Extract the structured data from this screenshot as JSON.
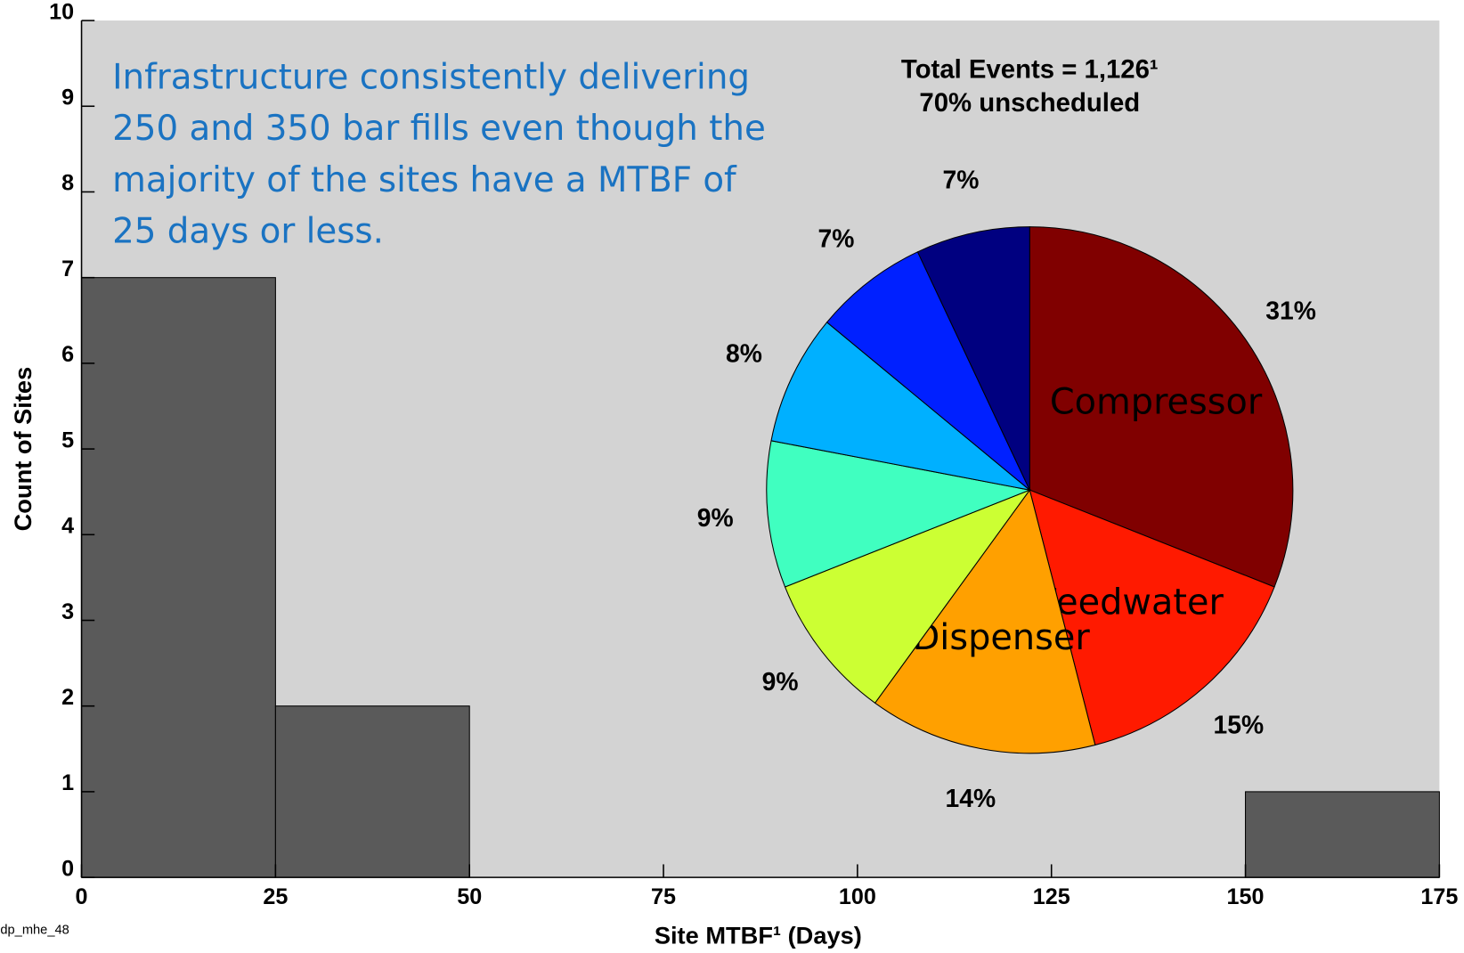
{
  "chart_data": [
    {
      "type": "histogram",
      "xlabel": "Site MTBF¹ (Days)",
      "ylabel": "Count of Sites",
      "bins": [
        0,
        25,
        50,
        75,
        100,
        125,
        150,
        175
      ],
      "values": [
        7,
        2,
        0,
        0,
        0,
        0,
        1
      ],
      "color": "#5a5a5a",
      "background": "#d3d3d3",
      "xlim": [
        0,
        175
      ],
      "ylim": [
        0,
        10
      ],
      "xticks": [
        0,
        25,
        50,
        75,
        100,
        125,
        150,
        175
      ],
      "yticks": [
        0,
        1,
        2,
        3,
        4,
        5,
        6,
        7,
        8,
        9,
        10
      ]
    },
    {
      "type": "pie",
      "title": "Total Events = 1,126¹",
      "subtitle": "70% unscheduled",
      "categories": [
        "Compressor",
        "Feedwater",
        "Dispenser",
        null,
        null,
        null,
        null,
        null
      ],
      "values": [
        31,
        15,
        14,
        9,
        9,
        8,
        7,
        7
      ],
      "value_labels": [
        "31%",
        "15%",
        "14%",
        "9%",
        "9%",
        "8%",
        "7%",
        "7%"
      ],
      "colors": [
        "#800000",
        "#ff1a00",
        "#ffa000",
        "#ccff33",
        "#40ffc0",
        "#00b0ff",
        "#0020ff",
        "#000080"
      ]
    }
  ],
  "annotation": [
    "Infrastructure consistently delivering",
    "250 and 350 bar fills even though the",
    "majority of the sites have a MTBF of",
    "25 days or less."
  ],
  "footer": "dp_mhe_48"
}
